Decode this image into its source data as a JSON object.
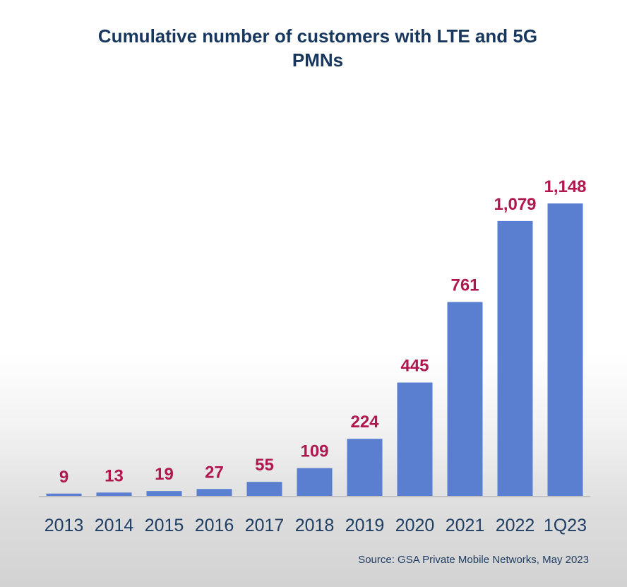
{
  "chart_data": {
    "type": "bar",
    "title_lines": [
      "Cumulative number of customers with LTE and 5G",
      "PMNs"
    ],
    "categories": [
      "2013",
      "2014",
      "2015",
      "2016",
      "2017",
      "2018",
      "2019",
      "2020",
      "2021",
      "2022",
      "1Q23"
    ],
    "value_labels": [
      "9",
      "13",
      "19",
      "27",
      "55",
      "109",
      "224",
      "445",
      "761",
      "1,079",
      "1,148"
    ],
    "series": [
      {
        "name": "Customers",
        "values": [
          9,
          13,
          19,
          27,
          55,
          109,
          224,
          445,
          761,
          1079,
          1148
        ],
        "color": "#5b7fd0"
      }
    ],
    "ylim": [
      0,
      1148
    ],
    "xlabel": "",
    "ylabel": "",
    "grid": false,
    "label_color": "#b1174f",
    "axis_color": "#1f3e64",
    "source": "Source: GSA Private Mobile Networks, May 2023"
  }
}
